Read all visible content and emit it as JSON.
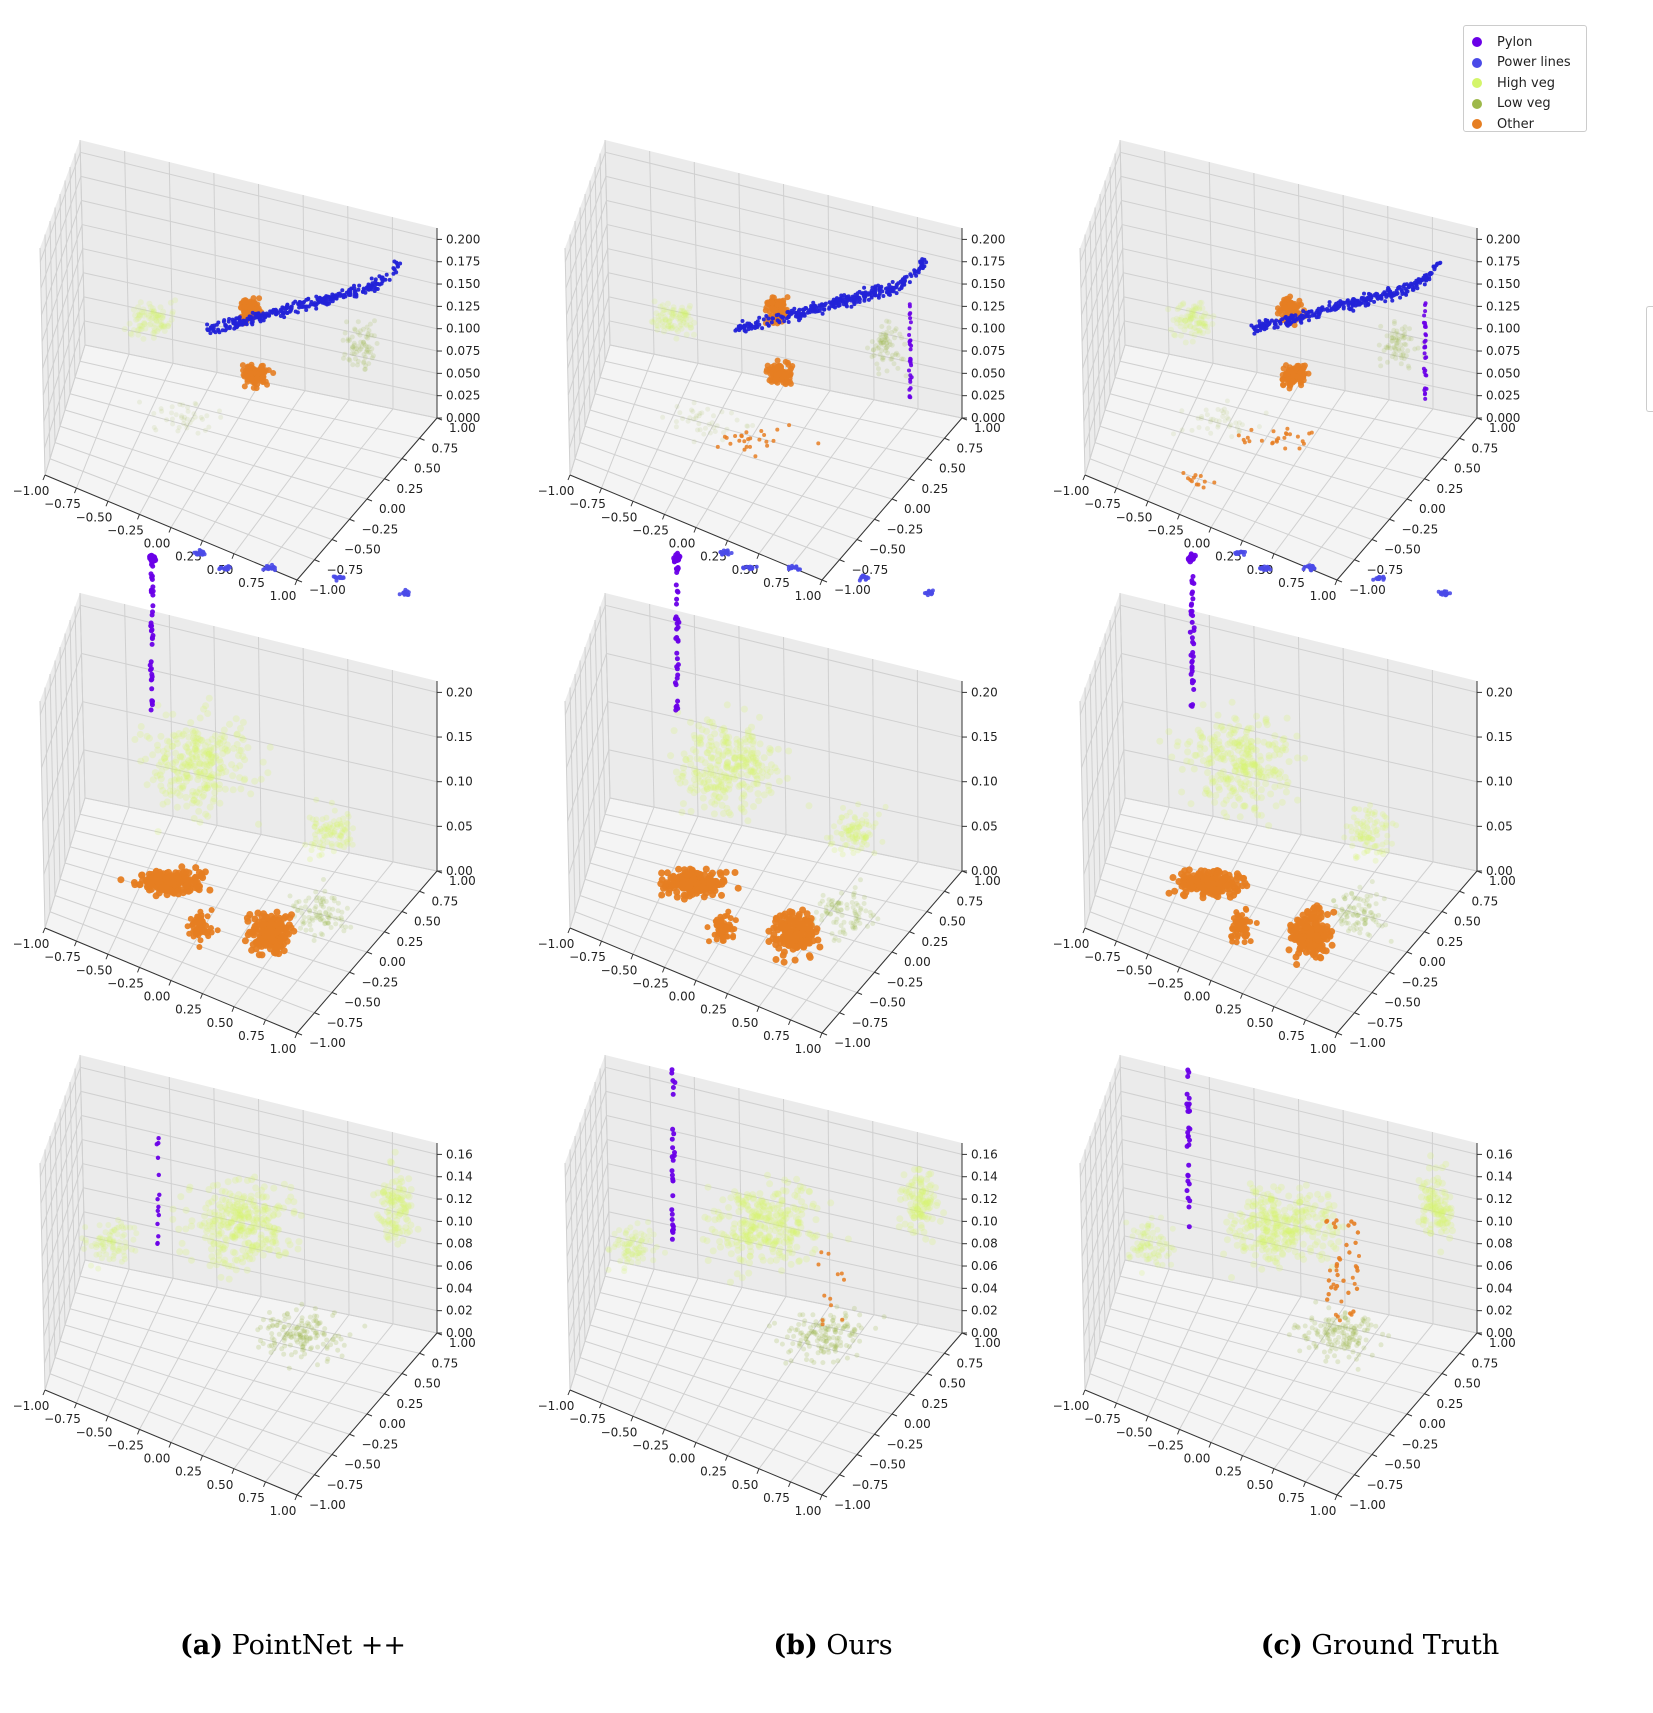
{
  "legend": [
    {
      "label": "Pylon",
      "color": "#6a00e8"
    },
    {
      "label": "Power lines",
      "color": "#4a4ae8"
    },
    {
      "label": "High veg",
      "color": "#d4f56a"
    },
    {
      "label": "Low veg",
      "color": "#9db84a"
    },
    {
      "label": "Other",
      "color": "#e67e22"
    }
  ],
  "captions": [
    {
      "letter": "(a)",
      "text": " PointNet ++"
    },
    {
      "letter": "(b)",
      "text": " Ours"
    },
    {
      "letter": "(c)",
      "text": " Ground Truth"
    }
  ],
  "chart_data": [
    {
      "type": "scatter",
      "scene": 1,
      "method": "PointNet ++",
      "x_ticks": [
        "−1.00",
        "−0.75",
        "−0.50",
        "−0.25",
        "0.00",
        "0.25",
        "0.50",
        "0.75",
        "1.00"
      ],
      "y_ticks": [
        "−1.00",
        "−0.75",
        "−0.50",
        "−0.25",
        "0.00",
        "0.25",
        "0.50",
        "0.75",
        "1.00"
      ],
      "z_ticks": [
        "0.000",
        "0.025",
        "0.050",
        "0.075",
        "0.100",
        "0.125",
        "0.150",
        "0.175",
        "0.200"
      ],
      "zlim": [
        0,
        0.2
      ]
    },
    {
      "type": "scatter",
      "scene": 1,
      "method": "Ours",
      "x_ticks": [
        "−1.00",
        "−0.75",
        "−0.50",
        "−0.25",
        "0.00",
        "0.25",
        "0.50",
        "0.75",
        "1.00"
      ],
      "y_ticks": [
        "−1.00",
        "−0.75",
        "−0.50",
        "−0.25",
        "0.00",
        "0.25",
        "0.50",
        "0.75",
        "1.00"
      ],
      "z_ticks": [
        "0.000",
        "0.025",
        "0.050",
        "0.075",
        "0.100",
        "0.125",
        "0.150",
        "0.175",
        "0.200"
      ],
      "zlim": [
        0,
        0.2
      ]
    },
    {
      "type": "scatter",
      "scene": 1,
      "method": "Ground Truth",
      "x_ticks": [
        "−1.00",
        "−0.75",
        "−0.50",
        "−0.25",
        "0.00",
        "0.25",
        "0.50",
        "0.75",
        "1.00"
      ],
      "y_ticks": [
        "−1.00",
        "−0.75",
        "−0.50",
        "−0.25",
        "0.00",
        "0.25",
        "0.50",
        "0.75",
        "1.00"
      ],
      "z_ticks": [
        "0.000",
        "0.025",
        "0.050",
        "0.075",
        "0.100",
        "0.125",
        "0.150",
        "0.175",
        "0.200"
      ],
      "zlim": [
        0,
        0.2
      ]
    },
    {
      "type": "scatter",
      "scene": 2,
      "method": "PointNet ++",
      "x_ticks": [
        "−1.00",
        "−0.75",
        "−0.50",
        "−0.25",
        "0.00",
        "0.25",
        "0.50",
        "0.75",
        "1.00"
      ],
      "y_ticks": [
        "−1.00",
        "−0.75",
        "−0.50",
        "−0.25",
        "0.00",
        "0.25",
        "0.50",
        "0.75",
        "1.00"
      ],
      "z_ticks": [
        "0.00",
        "0.05",
        "0.10",
        "0.15",
        "0.20"
      ],
      "zlim": [
        0,
        0.2
      ]
    },
    {
      "type": "scatter",
      "scene": 2,
      "method": "Ours",
      "x_ticks": [
        "−1.00",
        "−0.75",
        "−0.50",
        "−0.25",
        "0.00",
        "0.25",
        "0.50",
        "0.75",
        "1.00"
      ],
      "y_ticks": [
        "−1.00",
        "−0.75",
        "−0.50",
        "−0.25",
        "0.00",
        "0.25",
        "0.50",
        "0.75",
        "1.00"
      ],
      "z_ticks": [
        "0.00",
        "0.05",
        "0.10",
        "0.15",
        "0.20"
      ],
      "zlim": [
        0,
        0.2
      ]
    },
    {
      "type": "scatter",
      "scene": 2,
      "method": "Ground Truth",
      "x_ticks": [
        "−1.00",
        "−0.75",
        "−0.50",
        "−0.25",
        "0.00",
        "0.25",
        "0.50",
        "0.75",
        "1.00"
      ],
      "y_ticks": [
        "−1.00",
        "−0.75",
        "−0.50",
        "−0.25",
        "0.00",
        "0.25",
        "0.50",
        "0.75",
        "1.00"
      ],
      "z_ticks": [
        "0.00",
        "0.05",
        "0.10",
        "0.15",
        "0.20"
      ],
      "zlim": [
        0,
        0.2
      ]
    },
    {
      "type": "scatter",
      "scene": 3,
      "method": "PointNet ++",
      "x_ticks": [
        "−1.00",
        "−0.75",
        "−0.50",
        "−0.25",
        "0.00",
        "0.25",
        "0.50",
        "0.75",
        "1.00"
      ],
      "y_ticks": [
        "−1.00",
        "−0.75",
        "−0.50",
        "−0.25",
        "0.00",
        "0.25",
        "0.50",
        "0.75",
        "1.00"
      ],
      "z_ticks": [
        "0.00",
        "0.02",
        "0.04",
        "0.06",
        "0.08",
        "0.10",
        "0.12",
        "0.14",
        "0.16"
      ],
      "zlim": [
        0,
        0.16
      ]
    },
    {
      "type": "scatter",
      "scene": 3,
      "method": "Ours",
      "x_ticks": [
        "−1.00",
        "−0.75",
        "−0.50",
        "−0.25",
        "0.00",
        "0.25",
        "0.50",
        "0.75",
        "1.00"
      ],
      "y_ticks": [
        "−1.00",
        "−0.75",
        "−0.50",
        "−0.25",
        "0.00",
        "0.25",
        "0.50",
        "0.75",
        "1.00"
      ],
      "z_ticks": [
        "0.00",
        "0.02",
        "0.04",
        "0.06",
        "0.08",
        "0.10",
        "0.12",
        "0.14",
        "0.16"
      ],
      "zlim": [
        0,
        0.16
      ]
    },
    {
      "type": "scatter",
      "scene": 3,
      "method": "Ground Truth",
      "x_ticks": [
        "−1.00",
        "−0.75",
        "−0.50",
        "−0.25",
        "0.00",
        "0.25",
        "0.50",
        "0.75",
        "1.00"
      ],
      "y_ticks": [
        "−1.00",
        "−0.75",
        "−0.50",
        "−0.25",
        "0.00",
        "0.25",
        "0.50",
        "0.75",
        "1.00"
      ],
      "z_ticks": [
        "0.00",
        "0.02",
        "0.04",
        "0.06",
        "0.08",
        "0.10",
        "0.12",
        "0.14",
        "0.16"
      ],
      "zlim": [
        0,
        0.16
      ]
    }
  ]
}
